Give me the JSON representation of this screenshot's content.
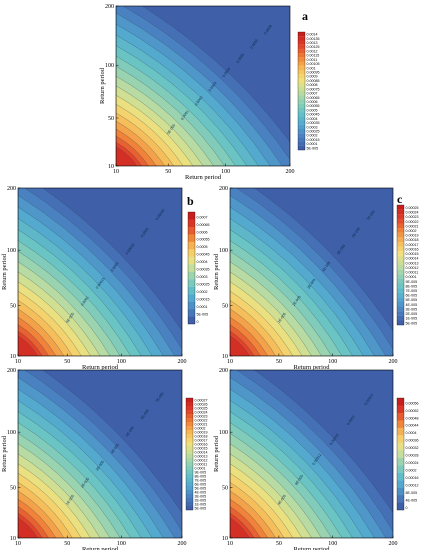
{
  "figure": {
    "charts": [
      {
        "letter": "a",
        "xlabel": "Return period",
        "ylabel": "Return period",
        "x_ticks": [
          "10",
          "50",
          "100",
          "200"
        ],
        "y_ticks": [
          "10",
          "50",
          "100",
          "200"
        ],
        "legend": [
          "0.0014",
          "0.00135",
          "0.0013",
          "0.00125",
          "0.0012",
          "0.00115",
          "0.0011",
          "0.00105",
          "0.001",
          "0.00095",
          "0.0009",
          "0.00085",
          "0.0008",
          "0.00075",
          "0.0007",
          "0.00065",
          "0.0006",
          "0.00055",
          "0.0005",
          "0.00045",
          "0.0004",
          "0.00035",
          "0.0003",
          "0.00025",
          "0.0002",
          "0.00015",
          "0.0001",
          "5E-005"
        ],
        "contour_labels": [
          "5E-005",
          "0.0001",
          "0.0002",
          "0.0003",
          "0.0004",
          "0.0005",
          "0.0006",
          "0.0008"
        ]
      },
      {
        "letter": "b",
        "xlabel": "Return period",
        "ylabel": "Return period",
        "x_ticks": [
          "10",
          "50",
          "100",
          "200"
        ],
        "y_ticks": [
          "10",
          "50",
          "100",
          "200"
        ],
        "legend": [
          "0.0007",
          "0.00065",
          "0.0006",
          "0.00055",
          "0.0005",
          "0.00045",
          "0.0004",
          "0.00035",
          "0.0003",
          "0.00025",
          "0.0002",
          "0.00015",
          "0.0001",
          "5E-005",
          "0"
        ],
        "contour_labels": [
          "5E-005",
          "0.0001",
          "0.00015",
          "0.0002",
          "0.00025",
          "0.0003",
          "0.00035"
        ]
      },
      {
        "letter": "c",
        "xlabel": "Return period",
        "ylabel": "Return period",
        "x_ticks": [
          "10",
          "50",
          "100",
          "200"
        ],
        "y_ticks": [
          "10",
          "50",
          "100",
          "200"
        ],
        "legend": [
          "0.00025",
          "0.00024",
          "0.00023",
          "0.00022",
          "0.00021",
          "0.0002",
          "0.00019",
          "0.00018",
          "0.00017",
          "0.00016",
          "0.00015",
          "0.00014",
          "0.00013",
          "0.00012",
          "0.00011",
          "0.0001",
          "9E-005",
          "8E-005",
          "7E-005",
          "6E-005",
          "5E-005",
          "4E-005",
          "3E-005",
          "2E-005",
          "1E-005",
          "5E-005"
        ],
        "contour_labels": [
          "1E-005",
          "2E-005",
          "3E-005",
          "4E-005",
          "5E-005",
          "6E-005",
          "7E-005"
        ]
      },
      {
        "letter": "d",
        "xlabel": "Return period",
        "ylabel": "Return period",
        "x_ticks": [
          "10",
          "50",
          "100",
          "200"
        ],
        "y_ticks": [
          "10",
          "50",
          "100",
          "200"
        ],
        "legend": [
          "0.00027",
          "0.00026",
          "0.00025",
          "0.00024",
          "0.00023",
          "0.00022",
          "0.00021",
          "0.0002",
          "0.00019",
          "0.00018",
          "0.00017",
          "0.00016",
          "0.00015",
          "0.00014",
          "0.00013",
          "0.00012",
          "0.00011",
          "0.0001",
          "9E-005",
          "8E-005",
          "7E-005",
          "6E-005",
          "5E-005",
          "4E-005",
          "3E-005",
          "2E-005",
          "1E-005",
          "5E-005"
        ],
        "contour_labels": [
          "1E-005",
          "2E-005",
          "3E-005",
          "4E-005",
          "5E-005",
          "6E-005",
          "7E-005"
        ]
      },
      {
        "letter": "e",
        "xlabel": "Return period",
        "ylabel": "Return period",
        "x_ticks": [
          "10",
          "50",
          "100",
          "200"
        ],
        "y_ticks": [
          "10",
          "50",
          "100",
          "200"
        ],
        "legend": [
          "0.00056",
          "0.00052",
          "0.00048",
          "0.00044",
          "0.0004",
          "0.00036",
          "0.00032",
          "0.00028",
          "0.00024",
          "0.0002",
          "0.00016",
          "0.00012",
          "8E-005",
          "4E-005",
          "0"
        ],
        "contour_labels": [
          "4E-005",
          "8E-005",
          "0.00012",
          "0.00016",
          "0.0002",
          "0.00024"
        ]
      }
    ]
  },
  "chart_data": [
    {
      "type": "heatmap",
      "title": "a",
      "xlabel": "Return period",
      "ylabel": "Return period",
      "x_range": [
        10,
        200
      ],
      "y_range": [
        10,
        200
      ],
      "x_ticks": [
        10,
        50,
        100,
        200
      ],
      "y_ticks": [
        10,
        50,
        100,
        200
      ],
      "z_max": 0.0014,
      "z_min": 5e-05,
      "grid": false,
      "legend_position": "right",
      "color_scale": [
        "#3f5fa8",
        "#4a7fc0",
        "#52a6cf",
        "#63c1c6",
        "#8ed0b5",
        "#c4de9b",
        "#f3e07a",
        "#f7b955",
        "#ef7e36",
        "#e0402a",
        "#c81e1e"
      ]
    },
    {
      "type": "heatmap",
      "title": "b",
      "xlabel": "Return period",
      "ylabel": "Return period",
      "x_range": [
        10,
        200
      ],
      "y_range": [
        10,
        200
      ],
      "x_ticks": [
        10,
        50,
        100,
        200
      ],
      "y_ticks": [
        10,
        50,
        100,
        200
      ],
      "z_max": 0.0007,
      "z_min": 0,
      "grid": false,
      "legend_position": "right"
    },
    {
      "type": "heatmap",
      "title": "c",
      "xlabel": "Return period",
      "ylabel": "Return period",
      "x_range": [
        10,
        200
      ],
      "y_range": [
        10,
        200
      ],
      "x_ticks": [
        10,
        50,
        100,
        200
      ],
      "y_ticks": [
        10,
        50,
        100,
        200
      ],
      "z_max": 0.00025,
      "z_min": 1e-05,
      "grid": false,
      "legend_position": "right"
    },
    {
      "type": "heatmap",
      "title": "d",
      "xlabel": "Return period",
      "ylabel": "Return period",
      "x_range": [
        10,
        200
      ],
      "y_range": [
        10,
        200
      ],
      "x_ticks": [
        10,
        50,
        100,
        200
      ],
      "y_ticks": [
        10,
        50,
        100,
        200
      ],
      "z_max": 0.00027,
      "z_min": 1e-05,
      "grid": false,
      "legend_position": "right"
    },
    {
      "type": "heatmap",
      "title": "e",
      "xlabel": "Return period",
      "ylabel": "Return period",
      "x_range": [
        10,
        200
      ],
      "y_range": [
        10,
        200
      ],
      "x_ticks": [
        10,
        50,
        100,
        200
      ],
      "y_ticks": [
        10,
        50,
        100,
        200
      ],
      "z_max": 0.00056,
      "z_min": 0,
      "grid": false,
      "legend_position": "right"
    }
  ]
}
